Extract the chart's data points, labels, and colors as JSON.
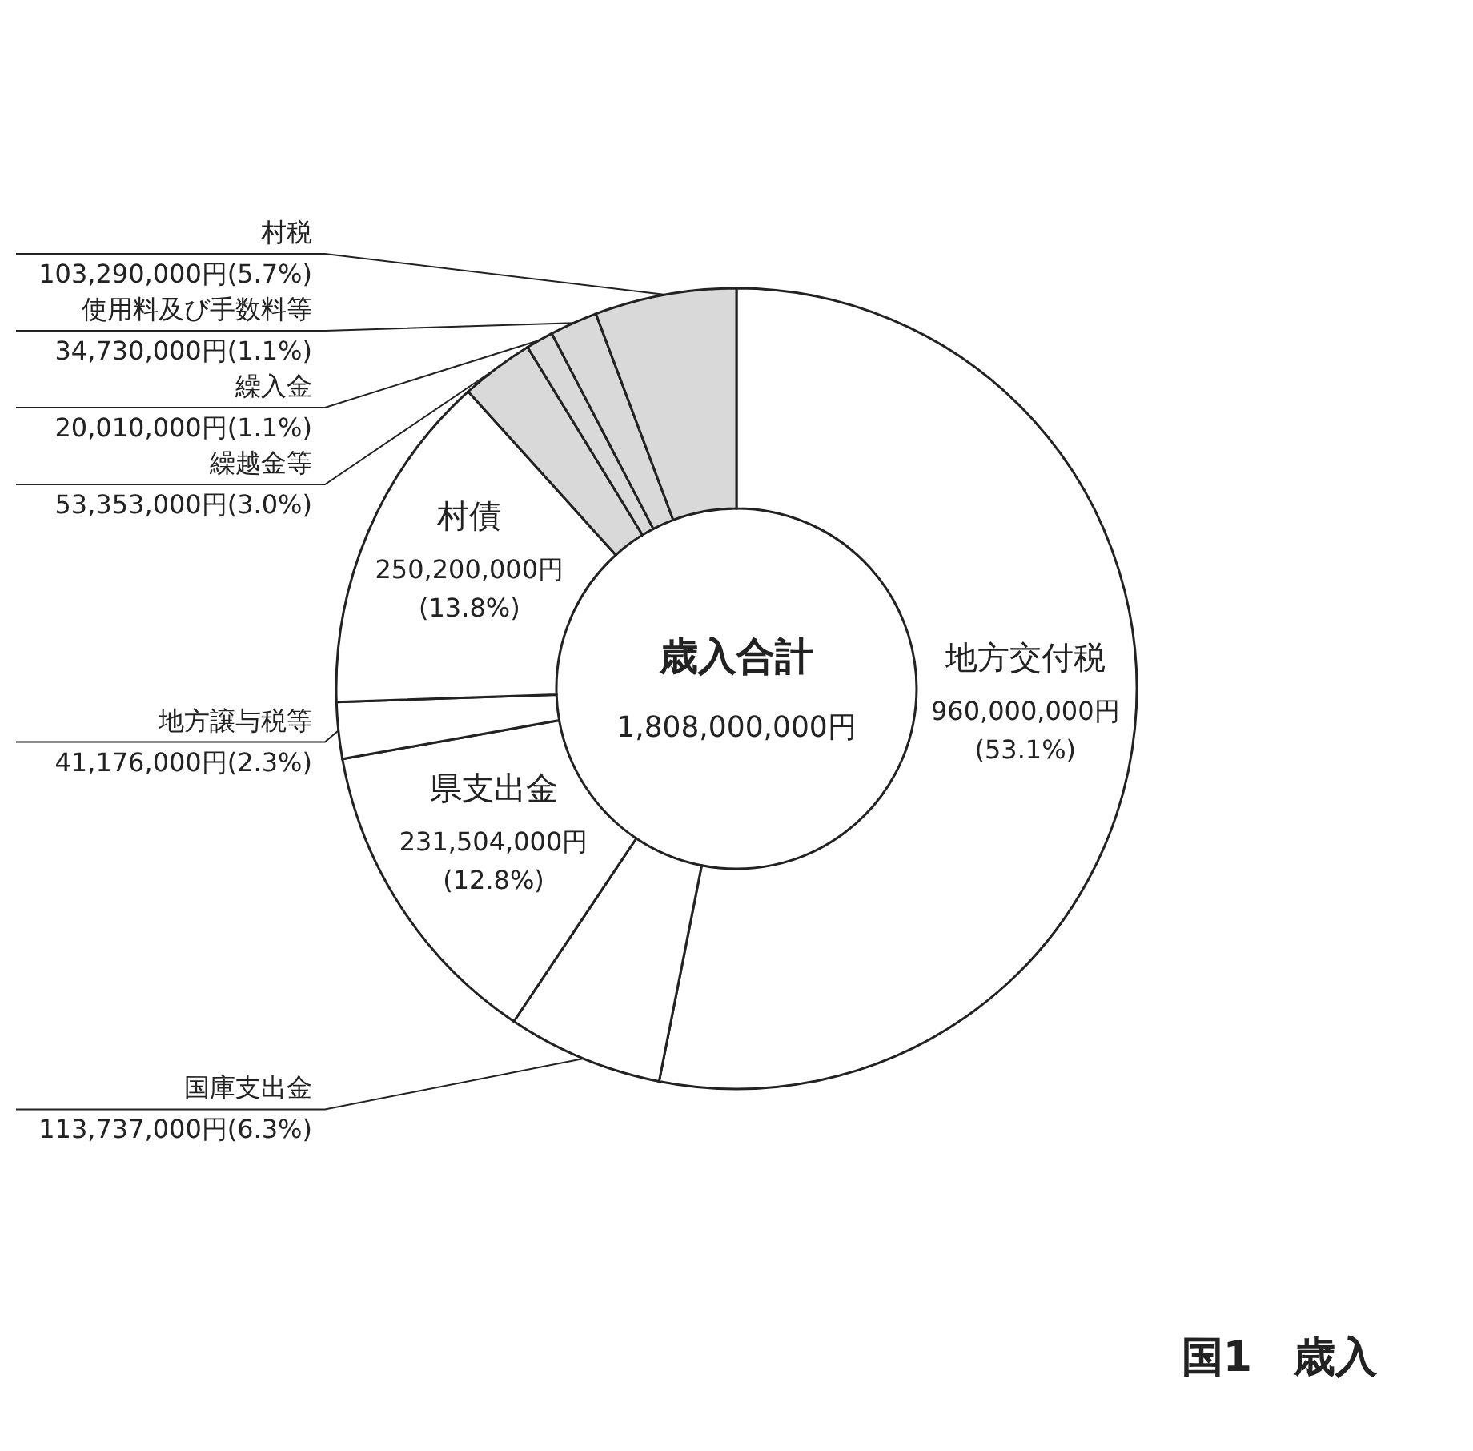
{
  "chart_data": {
    "type": "donut",
    "title": "国1　歳入",
    "categories": [
      "地方交付税",
      "国庫支出金",
      "県支出金",
      "地方譲与税等",
      "村債",
      "繰越金等",
      "繰入金",
      "使用料及び手数料等",
      "村税"
    ],
    "values": [
      960000000,
      113737000,
      231504000,
      41176000,
      250200000,
      53353000,
      20010000,
      34730000,
      103290000
    ],
    "value_labels": [
      "960,000,000円(53.1%)",
      "113,737,000円(6.3%)",
      "231,504,000円(12.8%)",
      "41,176,000円(2.3%)",
      "250,200,000円(13.8%)",
      "53,353,000円(3.0%)",
      "20,010,000円(1.1%)",
      "34,730,000円(1.1%)",
      "103,290,000円(5.7%)"
    ],
    "colors": [
      "#ffffff",
      "#ffffff",
      "#ffffff",
      "#ffffff",
      "#ffffff",
      "#d9d9d9",
      "#d9d9d9",
      "#d9d9d9",
      "#d9d9d9"
    ],
    "annotations": [
      "歳入合計",
      "1,808,000,000円"
    ]
  }
}
